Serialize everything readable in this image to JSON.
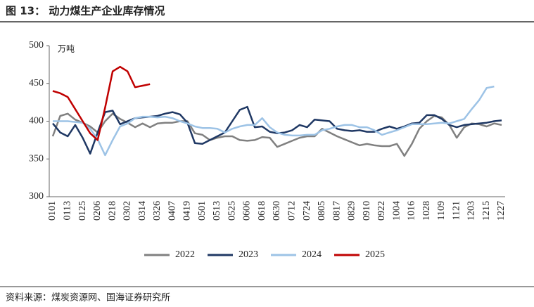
{
  "chart_data": {
    "type": "line",
    "title": "图 13：   动力煤生产企业库存情况",
    "y_label": "万吨",
    "source": "资料来源：煤炭资源网、国海证券研究所",
    "categories": [
      "0101",
      null,
      "0113",
      null,
      "0125",
      null,
      "0206",
      null,
      "0218",
      null,
      "0302",
      null,
      "0314",
      null,
      "0326",
      null,
      "0407",
      null,
      "0419",
      null,
      "0501",
      null,
      "0513",
      null,
      "0525",
      null,
      "0606",
      null,
      "0618",
      null,
      "0630",
      null,
      "0712",
      null,
      "0724",
      null,
      "0805",
      null,
      "0817",
      null,
      "0829",
      null,
      "0910",
      null,
      "0922",
      null,
      "1004",
      null,
      "1016",
      null,
      "1028",
      null,
      "1109",
      null,
      "1121",
      null,
      "1203",
      null,
      "1215",
      null,
      "1227"
    ],
    "ylim": [
      300,
      500
    ],
    "yticks": [
      300,
      350,
      400,
      450,
      500
    ],
    "series": [
      {
        "name": "2022",
        "color": "#808080",
        "values": [
          380,
          407,
          410,
          402,
          398,
          393,
          385,
          400,
          410,
          403,
          398,
          392,
          397,
          392,
          397,
          398,
          398,
          400,
          400,
          384,
          382,
          375,
          378,
          380,
          380,
          375,
          374,
          375,
          379,
          378,
          366,
          370,
          374,
          378,
          380,
          380,
          390,
          385,
          380,
          376,
          372,
          368,
          370,
          368,
          367,
          367,
          370,
          354,
          370,
          390,
          400,
          407,
          405,
          395,
          378,
          392,
          397,
          396,
          393,
          397,
          395
        ]
      },
      {
        "name": "2023",
        "color": "#1f3864",
        "values": [
          397,
          385,
          380,
          395,
          378,
          357,
          385,
          412,
          414,
          396,
          400,
          404,
          405,
          406,
          407,
          410,
          412,
          409,
          398,
          371,
          370,
          375,
          380,
          385,
          400,
          415,
          419,
          392,
          393,
          386,
          384,
          385,
          388,
          395,
          392,
          402,
          401,
          400,
          390,
          388,
          387,
          388,
          386,
          386,
          390,
          393,
          390,
          393,
          397,
          398,
          408,
          408,
          403,
          395,
          392,
          395,
          396,
          397,
          398,
          400,
          401
        ]
      },
      {
        "name": "2024",
        "color": "#9dc3e6",
        "values": [
          400,
          400,
          400,
          399,
          398,
          390,
          376,
          355,
          375,
          393,
          397,
          404,
          406,
          406,
          405,
          406,
          404,
          400,
          397,
          393,
          391,
          391,
          390,
          385,
          390,
          393,
          395,
          395,
          404,
          392,
          385,
          382,
          381,
          381,
          382,
          382,
          388,
          390,
          393,
          395,
          395,
          392,
          392,
          388,
          382,
          385,
          388,
          392,
          396,
          396,
          396,
          397,
          398,
          397,
          400,
          403,
          416,
          428,
          444,
          446,
          null
        ]
      },
      {
        "name": "2025",
        "color": "#c00000",
        "values": [
          440,
          437,
          432,
          416,
          400,
          384,
          375,
          418,
          466,
          472,
          466,
          445,
          447,
          449,
          null,
          null,
          null,
          null,
          null,
          null,
          null,
          null,
          null,
          null,
          null,
          null,
          null,
          null,
          null,
          null,
          null,
          null,
          null,
          null,
          null,
          null,
          null,
          null,
          null,
          null,
          null,
          null,
          null,
          null,
          null,
          null,
          null,
          null,
          null,
          null,
          null,
          null,
          null,
          null,
          null,
          null,
          null,
          null,
          null,
          null,
          null
        ]
      }
    ]
  }
}
